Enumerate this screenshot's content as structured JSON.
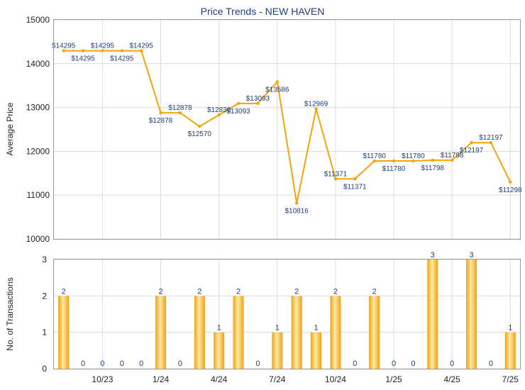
{
  "title": "Price Trends - NEW HAVEN",
  "colors": {
    "accent": "#f5a30a",
    "bar_light": "#fde9a8",
    "bar_dark": "#f2a20c",
    "label": "#1f3f7a",
    "grid": "#dcdcdc"
  },
  "chart_data": [
    {
      "type": "line",
      "title": "Price Trends - NEW HAVEN",
      "ylabel": "Average Price",
      "ylim": [
        10000,
        15000
      ],
      "yticks": [
        "10000",
        "11000",
        "12000",
        "13000",
        "14000",
        "15000"
      ],
      "grid": true,
      "values": [
        14295,
        14295,
        14295,
        14295,
        14295,
        12878,
        12878,
        12570,
        12830,
        13093,
        13093,
        13586,
        10816,
        12969,
        11371,
        11371,
        11780,
        11780,
        11780,
        11798,
        11798,
        12197,
        12197,
        11298
      ],
      "point_labels": [
        "$14295",
        "$14295",
        "$14295",
        "$14295",
        "$14295",
        "$12878",
        "$12878",
        "$12570",
        "$12830",
        "$13093",
        "$13093",
        "$13586",
        "$10816",
        "$12969",
        "$11371",
        "$11371",
        "$11780",
        "$11780",
        "$11780",
        "$11798",
        "$11798",
        "$12197",
        "$12197",
        "$11298"
      ]
    },
    {
      "type": "bar",
      "ylabel": "No. of Transactions",
      "ylim": [
        0,
        3
      ],
      "yticks": [
        "0",
        "1",
        "2",
        "3"
      ],
      "grid": true,
      "values": [
        2,
        0,
        0,
        0,
        0,
        2,
        0,
        2,
        1,
        2,
        0,
        1,
        2,
        1,
        2,
        0,
        2,
        0,
        0,
        3,
        0,
        3,
        0,
        1
      ],
      "value_labels": [
        "2",
        "0",
        "0",
        "0",
        "0",
        "2",
        "0",
        "2",
        "1",
        "2",
        "0",
        "1",
        "2",
        "1",
        "2",
        "0",
        "2",
        "0",
        "0",
        "3",
        "0",
        "3",
        "0",
        "1"
      ],
      "xtick_labels": [
        "10/23",
        "1/24",
        "4/24",
        "7/24",
        "10/24",
        "1/25",
        "4/25",
        "7/25"
      ]
    }
  ]
}
